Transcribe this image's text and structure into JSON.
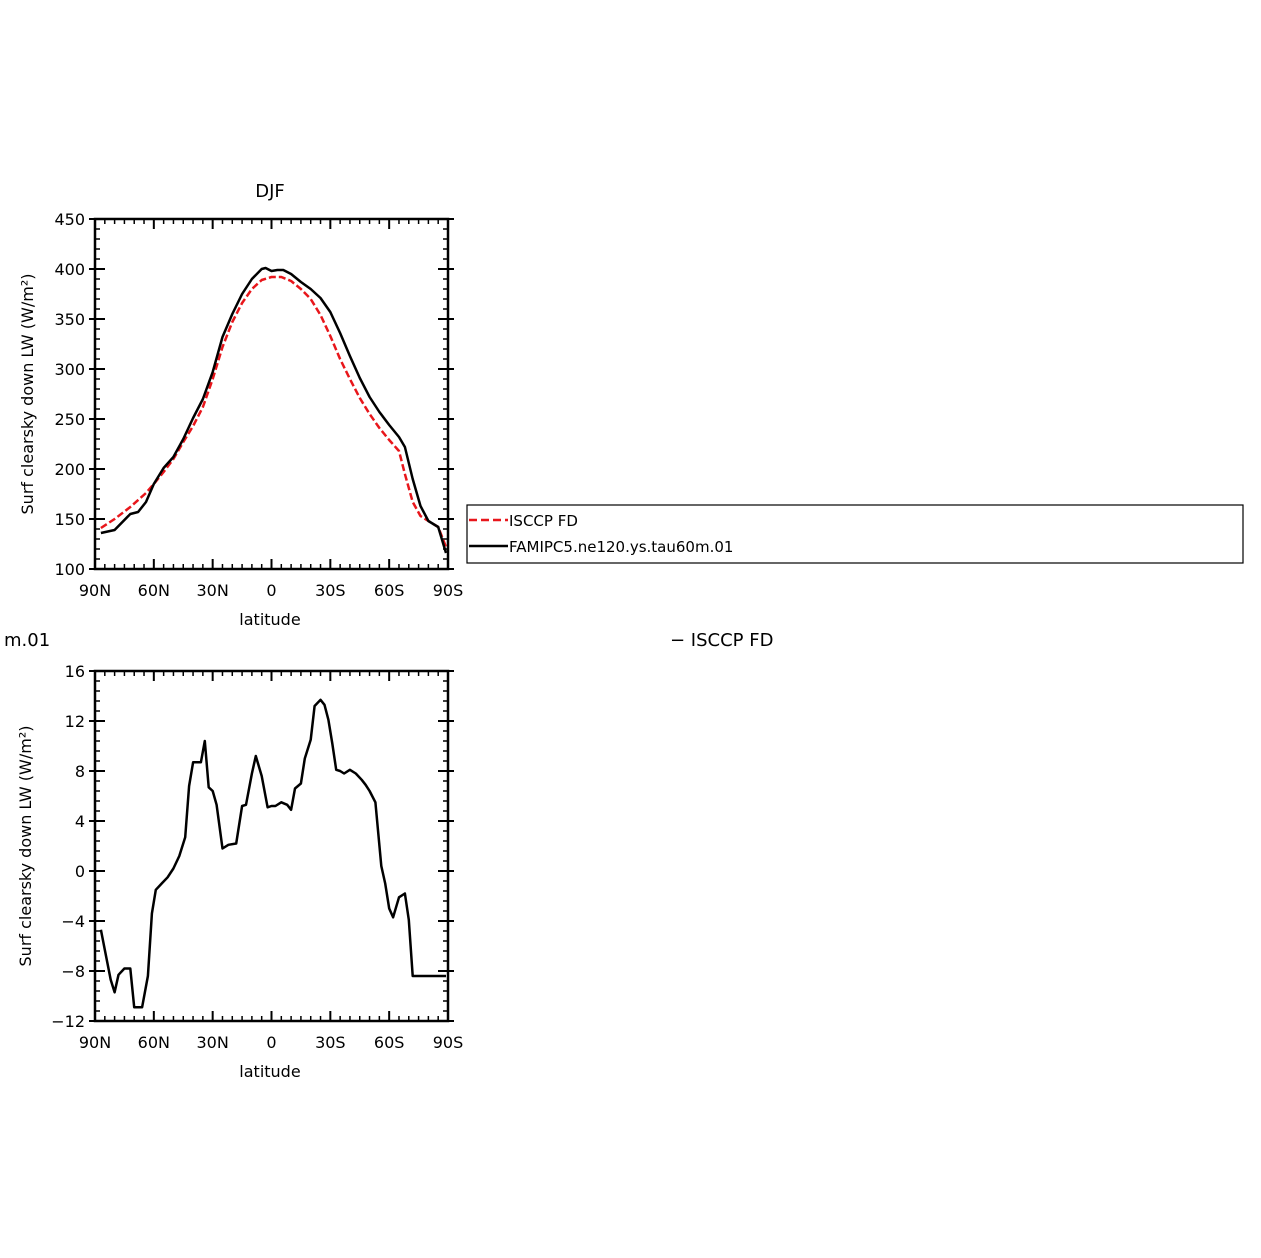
{
  "header_fragments": {
    "left_text": "m.01",
    "right_text": "− ISCCP FD"
  },
  "chart_data": [
    {
      "type": "line",
      "title": "DJF",
      "xlabel": "latitude",
      "ylabel": "Surf clearsky down LW (W/m²)",
      "x_ticks": [
        -90,
        -60,
        -30,
        0,
        30,
        60,
        90
      ],
      "x_tick_labels": [
        "90N",
        "60N",
        "30N",
        "0",
        "30S",
        "60S",
        "90S"
      ],
      "xlim": [
        -90,
        90
      ],
      "ylim": [
        100,
        450
      ],
      "y_ticks": [
        100,
        150,
        200,
        250,
        300,
        350,
        400,
        450
      ],
      "y_tick_labels": [
        "100",
        "150",
        "200",
        "250",
        "300",
        "350",
        "400",
        "450"
      ],
      "grid": false,
      "legend_position": "right",
      "series": [
        {
          "name": "ISCCP FD",
          "color": "#e8161b",
          "style": "dashed",
          "x": [
            -87,
            -80,
            -72,
            -64,
            -60,
            -55,
            -50,
            -45,
            -40,
            -35,
            -30,
            -25,
            -20,
            -15,
            -10,
            -5,
            0,
            5,
            10,
            15,
            20,
            25,
            30,
            35,
            40,
            45,
            50,
            55,
            60,
            65,
            68,
            72,
            76,
            80,
            85,
            89
          ],
          "y": [
            141,
            150,
            162,
            176,
            185,
            197,
            210,
            227,
            243,
            262,
            290,
            322,
            347,
            366,
            380,
            389,
            392,
            392,
            388,
            380,
            370,
            354,
            333,
            310,
            290,
            271,
            255,
            241,
            229,
            218,
            195,
            167,
            153,
            148,
            142,
            122
          ]
        },
        {
          "name": "FAMIPC5.ne120.ys.tau60m.01",
          "color": "#000000",
          "style": "solid",
          "x": [
            -87,
            -80,
            -72,
            -68,
            -64,
            -60,
            -55,
            -50,
            -45,
            -40,
            -35,
            -30,
            -25,
            -20,
            -15,
            -10,
            -5,
            -3,
            0,
            3,
            6,
            10,
            15,
            20,
            25,
            30,
            35,
            40,
            45,
            50,
            55,
            60,
            65,
            68,
            72,
            76,
            80,
            85,
            89
          ],
          "y": [
            136,
            139,
            155,
            157,
            167,
            185,
            201,
            212,
            230,
            251,
            270,
            297,
            332,
            355,
            375,
            390,
            400,
            401,
            398,
            399,
            399,
            395,
            387,
            380,
            371,
            357,
            336,
            313,
            291,
            272,
            257,
            244,
            232,
            222,
            190,
            163,
            148,
            142,
            116
          ]
        }
      ]
    },
    {
      "type": "line",
      "title": "",
      "xlabel": "latitude",
      "ylabel": "Surf clearsky down LW (W/m²)",
      "x_ticks": [
        -90,
        -60,
        -30,
        0,
        30,
        60,
        90
      ],
      "x_tick_labels": [
        "90N",
        "60N",
        "30N",
        "0",
        "30S",
        "60S",
        "90S"
      ],
      "xlim": [
        -90,
        90
      ],
      "ylim": [
        -12,
        16
      ],
      "y_ticks": [
        -12,
        -8,
        -4,
        0,
        4,
        8,
        12,
        16
      ],
      "y_tick_labels": [
        "−12",
        "−8",
        "−4",
        "0",
        "4",
        "8",
        "12",
        "16"
      ],
      "grid": false,
      "series": [
        {
          "color": "#000000",
          "style": "solid",
          "x": [
            -87,
            -85,
            -82,
            -80,
            -78,
            -75,
            -72,
            -70,
            -68,
            -66,
            -63,
            -61,
            -59,
            -56,
            -53,
            -50,
            -47,
            -44,
            -42,
            -40,
            -38,
            -36,
            -34,
            -32,
            -30,
            -28,
            -25,
            -22,
            -18,
            -15,
            -13,
            -10,
            -8,
            -5,
            -2,
            0,
            2,
            5,
            8,
            10,
            12,
            15,
            17,
            20,
            22,
            25,
            27,
            29,
            31,
            33,
            35,
            37,
            40,
            43,
            46,
            48,
            50,
            53,
            56,
            58,
            60,
            62,
            65,
            68,
            70,
            72,
            75,
            77,
            80,
            83,
            85,
            87,
            89
          ],
          "y": [
            -4.7,
            -6.3,
            -8.7,
            -9.7,
            -8.3,
            -7.8,
            -7.8,
            -10.9,
            -10.9,
            -10.9,
            -8.4,
            -3.4,
            -1.5,
            -1.0,
            -0.5,
            0.2,
            1.2,
            2.7,
            6.8,
            8.7,
            8.7,
            8.7,
            10.4,
            6.7,
            6.4,
            5.3,
            1.8,
            2.1,
            2.2,
            5.2,
            5.3,
            7.8,
            9.2,
            7.6,
            5.1,
            5.2,
            5.2,
            5.5,
            5.3,
            4.9,
            6.6,
            7.0,
            9.0,
            10.5,
            13.2,
            13.7,
            13.3,
            12.1,
            10.2,
            8.1,
            8.0,
            7.8,
            8.1,
            7.8,
            7.3,
            6.9,
            6.4,
            5.5,
            0.4,
            -1.0,
            -3.0,
            -3.7,
            -2.1,
            -1.8,
            -3.9,
            -8.4,
            -8.4,
            -8.4,
            -8.4,
            -8.4,
            -8.4,
            -8.4,
            -8.4
          ]
        }
      ]
    }
  ]
}
